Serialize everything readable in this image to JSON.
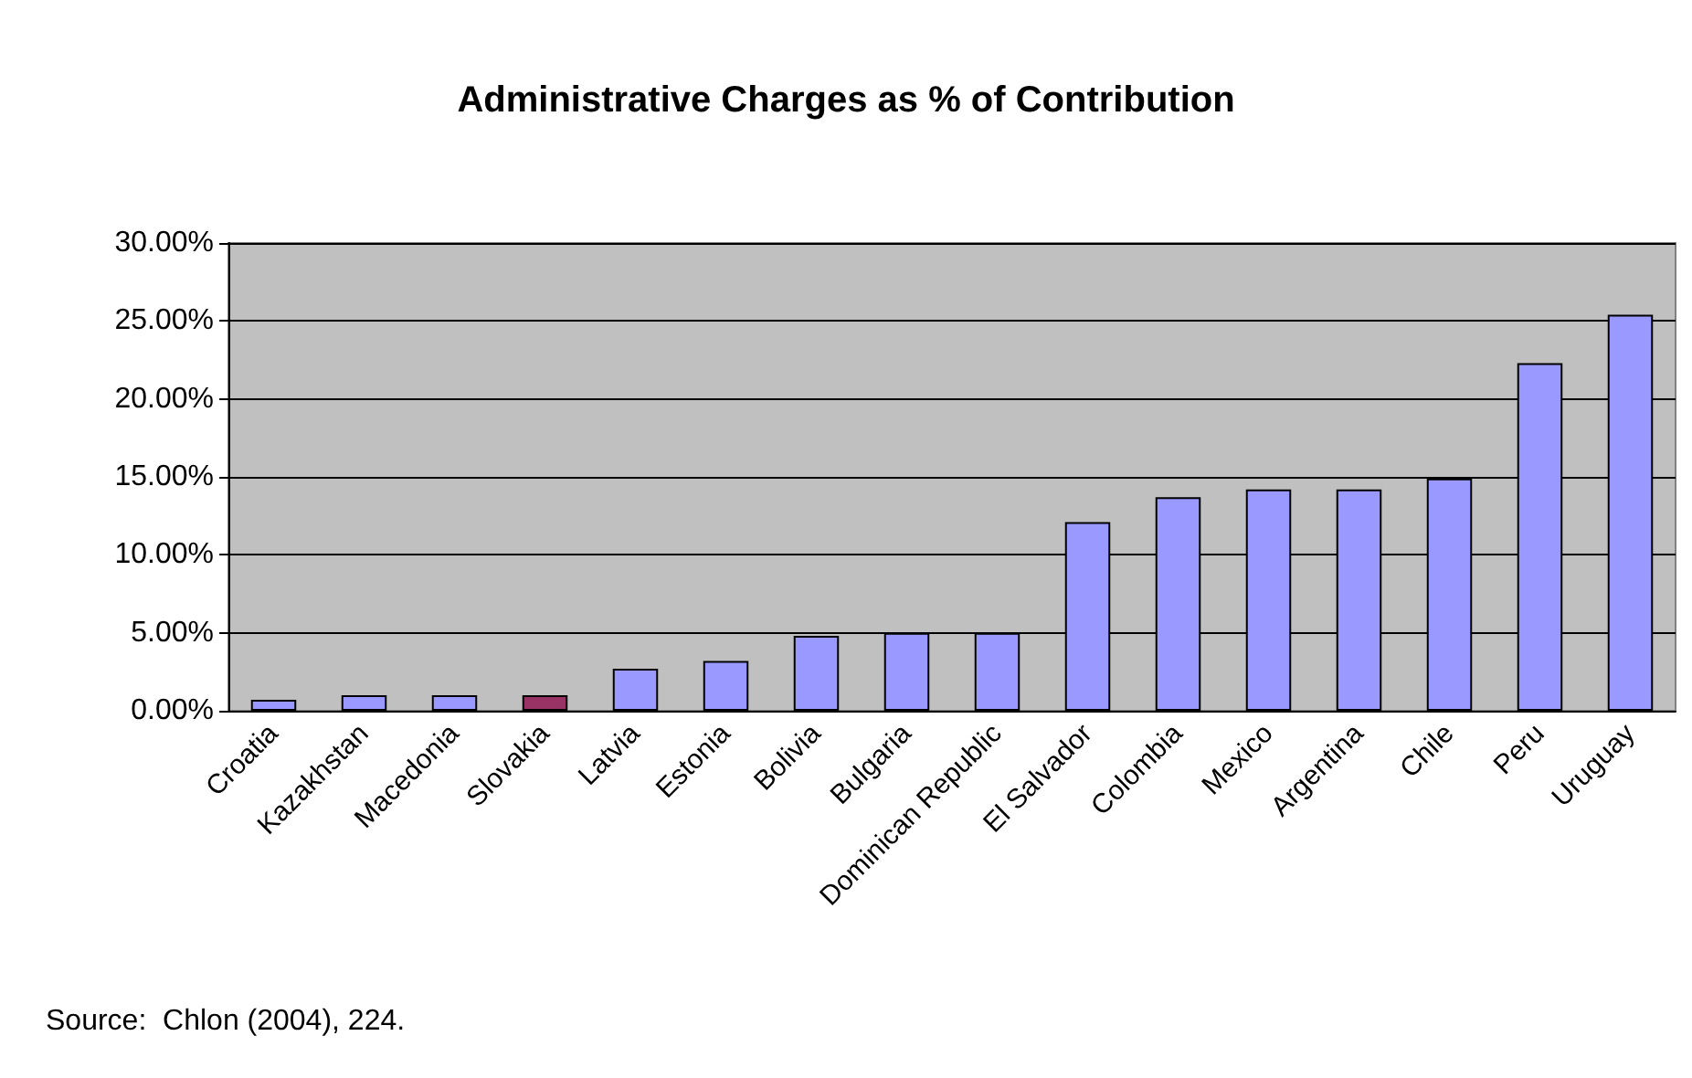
{
  "chart_data": {
    "type": "bar",
    "title": "Administrative Charges as % of Contribution",
    "categories": [
      "Croatia",
      "Kazakhstan",
      "Macedonia",
      "Slovakia",
      "Latvia",
      "Estonia",
      "Bolivia",
      "Bulgaria",
      "Dominican Republic",
      "El Salvador",
      "Colombia",
      "Mexico",
      "Argentina",
      "Chile",
      "Peru",
      "Uruguay"
    ],
    "values": [
      0.7,
      1.0,
      1.0,
      1.0,
      2.7,
      3.2,
      4.8,
      5.0,
      5.0,
      12.1,
      13.7,
      14.2,
      14.2,
      14.9,
      22.3,
      25.4
    ],
    "colors": [
      "#9999ff",
      "#9999ff",
      "#9999ff",
      "#993366",
      "#9999ff",
      "#9999ff",
      "#9999ff",
      "#9999ff",
      "#9999ff",
      "#9999ff",
      "#9999ff",
      "#9999ff",
      "#9999ff",
      "#9999ff",
      "#9999ff",
      "#9999ff"
    ],
    "ylim": [
      0,
      30
    ],
    "yticks": [
      {
        "value": 0,
        "label": "0.00%"
      },
      {
        "value": 5,
        "label": "5.00%"
      },
      {
        "value": 10,
        "label": "10.00%"
      },
      {
        "value": 15,
        "label": "15.00%"
      },
      {
        "value": 20,
        "label": "20.00%"
      },
      {
        "value": 25,
        "label": "25.00%"
      },
      {
        "value": 30,
        "label": "30.00%"
      }
    ],
    "grid": "y",
    "annotations": [
      "Source:  Chlon (2004), 224."
    ]
  }
}
